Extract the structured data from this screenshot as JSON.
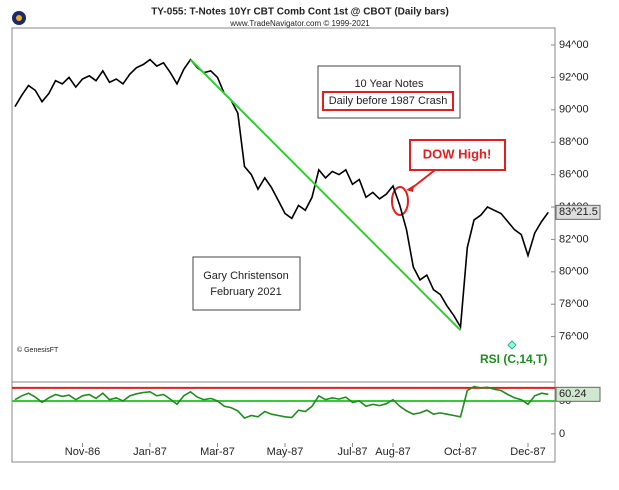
{
  "chart_data": [
    {
      "type": "line",
      "title": "TY-055:  T-Notes 10Yr CBT Comb Cont 1st @ CBOT  (Daily bars)",
      "subtitle": "www.TradeNavigator.com © 1999-2021",
      "categories": [
        null,
        null,
        null,
        null,
        null,
        null,
        null,
        null,
        null,
        null,
        "Nov-86",
        null,
        null,
        null,
        null,
        null,
        null,
        null,
        null,
        null,
        "Jan-87",
        null,
        null,
        null,
        null,
        null,
        null,
        null,
        null,
        null,
        "Mar-87",
        null,
        null,
        null,
        null,
        null,
        null,
        null,
        null,
        null,
        "May-87",
        null,
        null,
        null,
        null,
        null,
        null,
        null,
        null,
        null,
        "Jul-87",
        null,
        null,
        null,
        null,
        null,
        "Aug-87",
        null,
        null,
        null,
        null,
        null,
        null,
        null,
        null,
        null,
        "Oct-87",
        null,
        null,
        null,
        null,
        null,
        null,
        null,
        null,
        null,
        "Dec-87",
        null,
        null,
        null
      ],
      "values": [
        90.2,
        90.9,
        91.5,
        91.2,
        90.5,
        91.0,
        91.8,
        91.6,
        92.0,
        91.4,
        91.9,
        92.1,
        91.8,
        92.4,
        91.7,
        91.9,
        91.6,
        92.2,
        92.6,
        92.8,
        93.1,
        92.7,
        92.9,
        92.3,
        91.6,
        92.5,
        93.1,
        92.6,
        92.3,
        92.4,
        92.0,
        91.0,
        90.6,
        89.8,
        86.5,
        86.0,
        85.1,
        85.8,
        85.2,
        84.4,
        83.6,
        83.3,
        84.1,
        83.8,
        84.6,
        86.3,
        85.8,
        86.2,
        86.0,
        86.3,
        85.4,
        85.7,
        84.6,
        84.9,
        84.5,
        84.8,
        85.3,
        84.1,
        82.6,
        80.3,
        79.5,
        79.8,
        78.9,
        78.6,
        77.9,
        77.3,
        76.6,
        81.5,
        83.2,
        83.5,
        84.0,
        83.8,
        83.6,
        83.1,
        82.6,
        82.3,
        81.0,
        82.4,
        83.1,
        83.672
      ],
      "value_labels": [
        null,
        null,
        null,
        null,
        null,
        null,
        null,
        null,
        null,
        null,
        null,
        null,
        null,
        null,
        null,
        null,
        null,
        null,
        null,
        null,
        null,
        null,
        null,
        null,
        null,
        null,
        null,
        null,
        null,
        null,
        null,
        null,
        null,
        null,
        null,
        null,
        null,
        null,
        null,
        null,
        null,
        null,
        null,
        null,
        null,
        null,
        null,
        null,
        null,
        null,
        null,
        null,
        null,
        null,
        null,
        null,
        null,
        null,
        null,
        null,
        null,
        null,
        null,
        null,
        null,
        null,
        null,
        null,
        null,
        null,
        null,
        null,
        null,
        null,
        null,
        null,
        null,
        null,
        null,
        "83^21.5"
      ],
      "color": "#000000",
      "ylim": [
        73.2,
        95.05
      ],
      "yticks": [
        {
          "value": 76,
          "label": "76^00"
        },
        {
          "value": 78,
          "label": "78^00"
        },
        {
          "value": 80,
          "label": "80^00"
        },
        {
          "value": 82,
          "label": "82^00"
        },
        {
          "value": 84,
          "label": "84^00"
        },
        {
          "value": 86,
          "label": "86^00"
        },
        {
          "value": 88,
          "label": "88^00"
        },
        {
          "value": 90,
          "label": "90^00"
        },
        {
          "value": 92,
          "label": "92^00"
        },
        {
          "value": 94,
          "label": "94^00"
        }
      ],
      "trend_line": {
        "color": "#33cc33",
        "x": [
          26,
          66
        ],
        "values": [
          93.1,
          76.4
        ]
      },
      "annotations": [
        "10 Year Notes",
        "Daily before 1987 Crash",
        "DOW High!",
        "Gary Christenson",
        "February 2021",
        "© GenesisFT"
      ]
    },
    {
      "type": "line",
      "label": "RSI (C,14,T)",
      "values": [
        52,
        58,
        62,
        56,
        48,
        55,
        60,
        57,
        59,
        52,
        58,
        60,
        54,
        62,
        52,
        55,
        50,
        58,
        61,
        63,
        64,
        58,
        60,
        53,
        45,
        58,
        64,
        56,
        52,
        54,
        50,
        42,
        40,
        35,
        24,
        28,
        26,
        34,
        30,
        28,
        26,
        25,
        36,
        34,
        42,
        58,
        52,
        55,
        53,
        56,
        48,
        50,
        42,
        45,
        43,
        46,
        52,
        42,
        35,
        30,
        32,
        36,
        30,
        32,
        30,
        28,
        26,
        66,
        72,
        70,
        71,
        68,
        66,
        60,
        55,
        52,
        45,
        58,
        62,
        60.24
      ],
      "value_labels": [
        null,
        null,
        null,
        null,
        null,
        null,
        null,
        null,
        null,
        null,
        null,
        null,
        null,
        null,
        null,
        null,
        null,
        null,
        null,
        null,
        null,
        null,
        null,
        null,
        null,
        null,
        null,
        null,
        null,
        null,
        null,
        null,
        null,
        null,
        null,
        null,
        null,
        null,
        null,
        null,
        null,
        null,
        null,
        null,
        null,
        null,
        null,
        null,
        null,
        null,
        null,
        null,
        null,
        null,
        null,
        null,
        null,
        null,
        null,
        null,
        null,
        null,
        null,
        null,
        null,
        null,
        null,
        null,
        null,
        null,
        null,
        null,
        null,
        null,
        null,
        null,
        null,
        null,
        null,
        "60.24"
      ],
      "color": "#1e8c1e",
      "ylim": [
        -20,
        79
      ],
      "yticks": [
        0,
        50
      ],
      "hlines": [
        {
          "value": 70,
          "color": "#e02020"
        },
        {
          "value": 50,
          "color": "#33cc33"
        }
      ]
    }
  ]
}
